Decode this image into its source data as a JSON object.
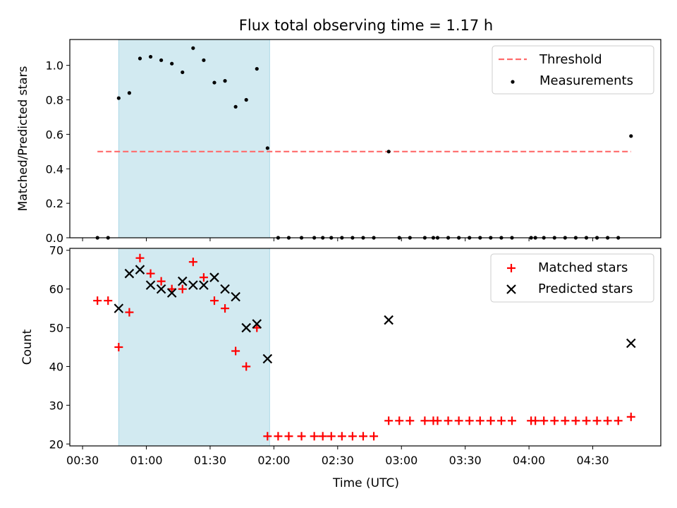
{
  "chart_data": {
    "title": "Flux total observing time = 1.17 h",
    "x_ticks": [
      "00:30",
      "01:00",
      "01:30",
      "02:00",
      "02:30",
      "03:00",
      "03:30",
      "04:00",
      "04:30"
    ],
    "xlim": [
      "00:24",
      "05:02"
    ],
    "xlabel": "Time (UTC)",
    "highlight_span": {
      "start": "00:47",
      "end": "01:58",
      "color": "#add8e6"
    },
    "panels": [
      {
        "type": "scatter",
        "ylabel": "Matched/Predicted stars",
        "ylim": [
          0,
          1.15
        ],
        "y_ticks": [
          "0.0",
          "0.2",
          "0.4",
          "0.6",
          "0.8",
          "1.0"
        ],
        "legend_position": "top-right",
        "series": [
          {
            "name": "Threshold",
            "kind": "dashed-line",
            "color": "#ff6b6b",
            "x": [
              "00:37",
              "04:48"
            ],
            "y": [
              0.5,
              0.5
            ]
          },
          {
            "name": "Measurements",
            "kind": "dot",
            "color": "#000000",
            "x": [
              "00:37",
              "00:42",
              "00:47",
              "00:52",
              "00:57",
              "01:02",
              "01:07",
              "01:12",
              "01:17",
              "01:22",
              "01:27",
              "01:32",
              "01:37",
              "01:42",
              "01:47",
              "01:52",
              "01:57",
              "02:02",
              "02:07",
              "02:13",
              "02:19",
              "02:23",
              "02:27",
              "02:32",
              "02:37",
              "02:42",
              "02:47",
              "02:54",
              "02:59",
              "03:04",
              "03:11",
              "03:15",
              "03:17",
              "03:22",
              "03:27",
              "03:32",
              "03:37",
              "03:42",
              "03:47",
              "03:52",
              "04:01",
              "04:03",
              "04:07",
              "04:12",
              "04:17",
              "04:22",
              "04:27",
              "04:32",
              "04:37",
              "04:42",
              "04:48"
            ],
            "y": [
              0,
              0,
              0.81,
              0.84,
              1.04,
              1.05,
              1.03,
              1.01,
              0.96,
              1.1,
              1.03,
              0.9,
              0.91,
              0.76,
              0.8,
              0.98,
              0.52,
              0,
              0,
              0,
              0,
              0,
              0,
              0,
              0,
              0,
              0,
              0.5,
              0,
              0,
              0,
              0,
              0,
              0,
              0,
              0,
              0,
              0,
              0,
              0,
              0,
              0,
              0,
              0,
              0,
              0,
              0,
              0,
              0,
              0,
              0.59
            ]
          }
        ]
      },
      {
        "type": "scatter",
        "ylabel": "Count",
        "ylim": [
          19.5,
          70.5
        ],
        "y_ticks": [
          "20",
          "30",
          "40",
          "50",
          "60",
          "70"
        ],
        "legend_position": "top-right",
        "series": [
          {
            "name": "Matched stars",
            "kind": "plus",
            "color": "#ff0000",
            "x": [
              "00:37",
              "00:42",
              "00:47",
              "00:52",
              "00:57",
              "01:02",
              "01:07",
              "01:12",
              "01:17",
              "01:22",
              "01:27",
              "01:32",
              "01:37",
              "01:42",
              "01:47",
              "01:52",
              "01:57",
              "02:02",
              "02:07",
              "02:13",
              "02:19",
              "02:23",
              "02:27",
              "02:32",
              "02:37",
              "02:42",
              "02:47",
              "02:54",
              "02:59",
              "03:04",
              "03:11",
              "03:15",
              "03:17",
              "03:22",
              "03:27",
              "03:32",
              "03:37",
              "03:42",
              "03:47",
              "03:52",
              "04:01",
              "04:03",
              "04:07",
              "04:12",
              "04:17",
              "04:22",
              "04:27",
              "04:32",
              "04:37",
              "04:42",
              "04:48"
            ],
            "y": [
              57,
              57,
              45,
              54,
              68,
              64,
              62,
              60,
              60,
              67,
              63,
              57,
              55,
              44,
              40,
              50,
              22,
              22,
              22,
              22,
              22,
              22,
              22,
              22,
              22,
              22,
              22,
              26,
              26,
              26,
              26,
              26,
              26,
              26,
              26,
              26,
              26,
              26,
              26,
              26,
              26,
              26,
              26,
              26,
              26,
              26,
              26,
              26,
              26,
              26,
              27
            ]
          },
          {
            "name": "Predicted stars",
            "kind": "cross",
            "color": "#000000",
            "x": [
              "00:47",
              "00:52",
              "00:57",
              "01:02",
              "01:07",
              "01:12",
              "01:17",
              "01:22",
              "01:27",
              "01:32",
              "01:37",
              "01:42",
              "01:47",
              "01:52",
              "01:57",
              "02:54",
              "04:48"
            ],
            "y": [
              55,
              64,
              65,
              61,
              60,
              59,
              62,
              61,
              61,
              63,
              60,
              58,
              50,
              51,
              42,
              52,
              46
            ]
          }
        ]
      }
    ]
  }
}
